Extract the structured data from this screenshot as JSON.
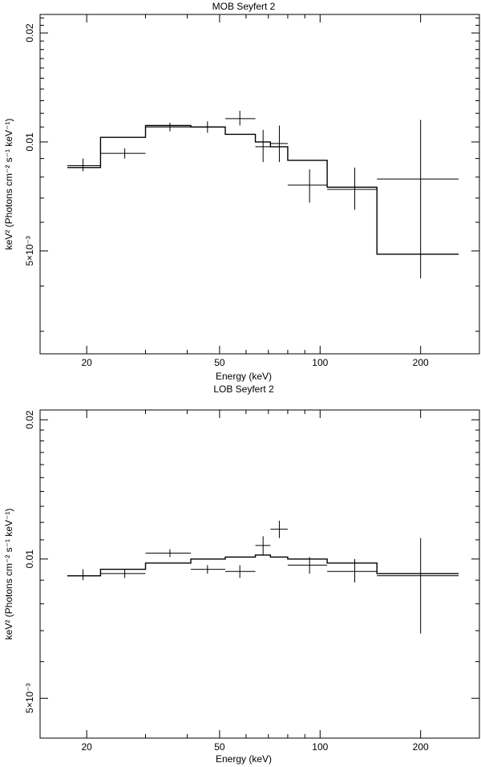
{
  "chart_data": [
    {
      "type": "line",
      "title": "MOB Seyfert 2",
      "xlabel": "Energy (keV)",
      "ylabel": "keV² (Photons cm⁻² s⁻¹ keV⁻¹)",
      "xscale": "log",
      "yscale": "log",
      "xlim": [
        14.5,
        300
      ],
      "ylim": [
        0.0026,
        0.0225
      ],
      "xticks": [
        {
          "value": 20,
          "label": "20"
        },
        {
          "value": 50,
          "label": "50"
        },
        {
          "value": 100,
          "label": "100"
        },
        {
          "value": 200,
          "label": "200"
        }
      ],
      "yticks": [
        {
          "value": 0.005,
          "label": "5×10⁻³"
        },
        {
          "value": 0.01,
          "label": "0.01"
        },
        {
          "value": 0.02,
          "label": "0.02"
        }
      ],
      "data": [
        {
          "x": 19.5,
          "xlo": 17.5,
          "xhi": 22.0,
          "y": 0.0086,
          "ylo": 0.0083,
          "yhi": 0.009
        },
        {
          "x": 26.0,
          "xlo": 22.0,
          "xhi": 30.0,
          "y": 0.0093,
          "ylo": 0.009,
          "yhi": 0.0096
        },
        {
          "x": 35.5,
          "xlo": 30.0,
          "xhi": 41.0,
          "y": 0.011,
          "ylo": 0.0107,
          "yhi": 0.0113
        },
        {
          "x": 46.0,
          "xlo": 41.0,
          "xhi": 52.0,
          "y": 0.011,
          "ylo": 0.0106,
          "yhi": 0.0114
        },
        {
          "x": 57.5,
          "xlo": 52.0,
          "xhi": 64.0,
          "y": 0.0116,
          "ylo": 0.0111,
          "yhi": 0.0122
        },
        {
          "x": 67.5,
          "xlo": 64.0,
          "xhi": 71.0,
          "y": 0.0097,
          "ylo": 0.0088,
          "yhi": 0.0108
        },
        {
          "x": 75.5,
          "xlo": 71.0,
          "xhi": 80.0,
          "y": 0.0099,
          "ylo": 0.0088,
          "yhi": 0.0111
        },
        {
          "x": 93.0,
          "xlo": 80.0,
          "xhi": 105.0,
          "y": 0.0076,
          "ylo": 0.0068,
          "yhi": 0.0084
        },
        {
          "x": 127.0,
          "xlo": 105.0,
          "xhi": 148.0,
          "y": 0.0074,
          "ylo": 0.0065,
          "yhi": 0.0085
        },
        {
          "x": 200.0,
          "xlo": 148.0,
          "xhi": 260.0,
          "y": 0.0079,
          "ylo": 0.0042,
          "yhi": 0.0115
        }
      ],
      "model": {
        "edges": [
          17.5,
          22.0,
          30.0,
          41.0,
          52.0,
          64.0,
          71.0,
          80.0,
          105.0,
          148.0,
          260.0
        ],
        "values": [
          0.0085,
          0.0103,
          0.0111,
          0.011,
          0.0105,
          0.01,
          0.0097,
          0.0089,
          0.0075,
          0.0049
        ]
      }
    },
    {
      "type": "line",
      "title": "LOB Seyfert 2",
      "xlabel": "Energy (keV)",
      "ylabel": "keV² (Photons cm⁻² s⁻¹ keV⁻¹)",
      "xscale": "log",
      "yscale": "log",
      "xlim": [
        14.5,
        300
      ],
      "ylim": [
        0.0041,
        0.021
      ],
      "xticks": [
        {
          "value": 20,
          "label": "20"
        },
        {
          "value": 50,
          "label": "50"
        },
        {
          "value": 100,
          "label": "100"
        },
        {
          "value": 200,
          "label": "200"
        }
      ],
      "yticks": [
        {
          "value": 0.005,
          "label": "5×10⁻³"
        },
        {
          "value": 0.01,
          "label": "0.01"
        },
        {
          "value": 0.02,
          "label": "0.02"
        }
      ],
      "data": [
        {
          "x": 19.5,
          "xlo": 17.5,
          "xhi": 22.0,
          "y": 0.0092,
          "ylo": 0.009,
          "yhi": 0.0095
        },
        {
          "x": 26.0,
          "xlo": 22.0,
          "xhi": 30.0,
          "y": 0.0093,
          "ylo": 0.0091,
          "yhi": 0.0095
        },
        {
          "x": 35.5,
          "xlo": 30.0,
          "xhi": 41.0,
          "y": 0.0103,
          "ylo": 0.0101,
          "yhi": 0.0105
        },
        {
          "x": 46.0,
          "xlo": 41.0,
          "xhi": 52.0,
          "y": 0.0095,
          "ylo": 0.0093,
          "yhi": 0.0097
        },
        {
          "x": 57.5,
          "xlo": 52.0,
          "xhi": 64.0,
          "y": 0.0094,
          "ylo": 0.0091,
          "yhi": 0.0097
        },
        {
          "x": 67.5,
          "xlo": 64.0,
          "xhi": 71.0,
          "y": 0.0107,
          "ylo": 0.0102,
          "yhi": 0.0112
        },
        {
          "x": 75.5,
          "xlo": 71.0,
          "xhi": 80.0,
          "y": 0.0116,
          "ylo": 0.0111,
          "yhi": 0.0121
        },
        {
          "x": 93.0,
          "xlo": 80.0,
          "xhi": 105.0,
          "y": 0.0097,
          "ylo": 0.0093,
          "yhi": 0.0101
        },
        {
          "x": 127.0,
          "xlo": 105.0,
          "xhi": 148.0,
          "y": 0.0094,
          "ylo": 0.0089,
          "yhi": 0.01
        },
        {
          "x": 200.0,
          "xlo": 148.0,
          "xhi": 260.0,
          "y": 0.0092,
          "ylo": 0.0069,
          "yhi": 0.0111
        }
      ],
      "model": {
        "edges": [
          17.5,
          22.0,
          30.0,
          41.0,
          52.0,
          64.0,
          71.0,
          80.0,
          105.0,
          148.0,
          260.0
        ],
        "values": [
          0.0092,
          0.0095,
          0.0098,
          0.01,
          0.0101,
          0.0102,
          0.0101,
          0.01,
          0.0098,
          0.0093
        ]
      }
    }
  ]
}
